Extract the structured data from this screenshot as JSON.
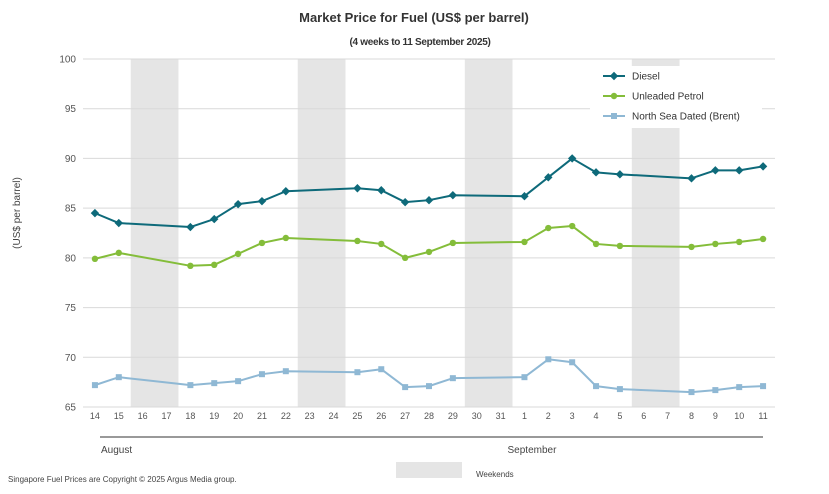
{
  "chart_data": {
    "type": "line",
    "title": "Market Price for Fuel (US$ per barrel)",
    "subtitle": "(4 weeks to 11 September 2025)",
    "ylabel": "(US$ per barrel)",
    "xlabel": "",
    "ylim": [
      65,
      100
    ],
    "yticks": [
      65,
      70,
      75,
      80,
      85,
      90,
      95,
      100
    ],
    "grid": true,
    "legend_position": "top-right",
    "categories": [
      "14",
      "15",
      "16",
      "17",
      "18",
      "19",
      "20",
      "21",
      "22",
      "23",
      "24",
      "25",
      "26",
      "27",
      "28",
      "29",
      "30",
      "31",
      "1",
      "2",
      "3",
      "4",
      "5",
      "6",
      "7",
      "8",
      "9",
      "10",
      "11"
    ],
    "months": [
      {
        "label": "August",
        "start": "14",
        "end": "31"
      },
      {
        "label": "September",
        "start": "1",
        "end": "11"
      }
    ],
    "weekend_pairs": [
      [
        "16",
        "17"
      ],
      [
        "23",
        "24"
      ],
      [
        "30",
        "31"
      ],
      [
        "6",
        "7"
      ]
    ],
    "weekend_label": "Weekends",
    "series": [
      {
        "name": "Diesel",
        "color": "#0e6a7a",
        "marker": "diamond",
        "values": [
          84.5,
          83.5,
          null,
          null,
          83.1,
          83.9,
          85.4,
          85.7,
          86.7,
          null,
          null,
          87.0,
          86.8,
          85.6,
          85.8,
          86.3,
          null,
          null,
          86.2,
          88.1,
          90.0,
          88.6,
          88.4,
          null,
          null,
          88.0,
          88.8,
          88.8,
          89.2
        ]
      },
      {
        "name": "Unleaded Petrol",
        "color": "#84bd3a",
        "marker": "circle",
        "values": [
          79.9,
          80.5,
          null,
          null,
          79.2,
          79.3,
          80.4,
          81.5,
          82.0,
          null,
          null,
          81.7,
          81.4,
          80.0,
          80.6,
          81.5,
          null,
          null,
          81.6,
          83.0,
          83.2,
          81.4,
          81.2,
          null,
          null,
          81.1,
          81.4,
          81.6,
          81.9
        ]
      },
      {
        "name": "North Sea Dated (Brent)",
        "color": "#8fb8d4",
        "marker": "square",
        "values": [
          67.2,
          68.0,
          null,
          null,
          67.2,
          67.4,
          67.6,
          68.3,
          68.6,
          null,
          null,
          68.5,
          68.8,
          67.0,
          67.1,
          67.9,
          null,
          null,
          68.0,
          69.8,
          69.5,
          67.1,
          66.8,
          null,
          null,
          66.5,
          66.7,
          67.0,
          67.1
        ]
      }
    ]
  },
  "footer": "Singapore Fuel Prices are Copyright © 2025 Argus Media group."
}
